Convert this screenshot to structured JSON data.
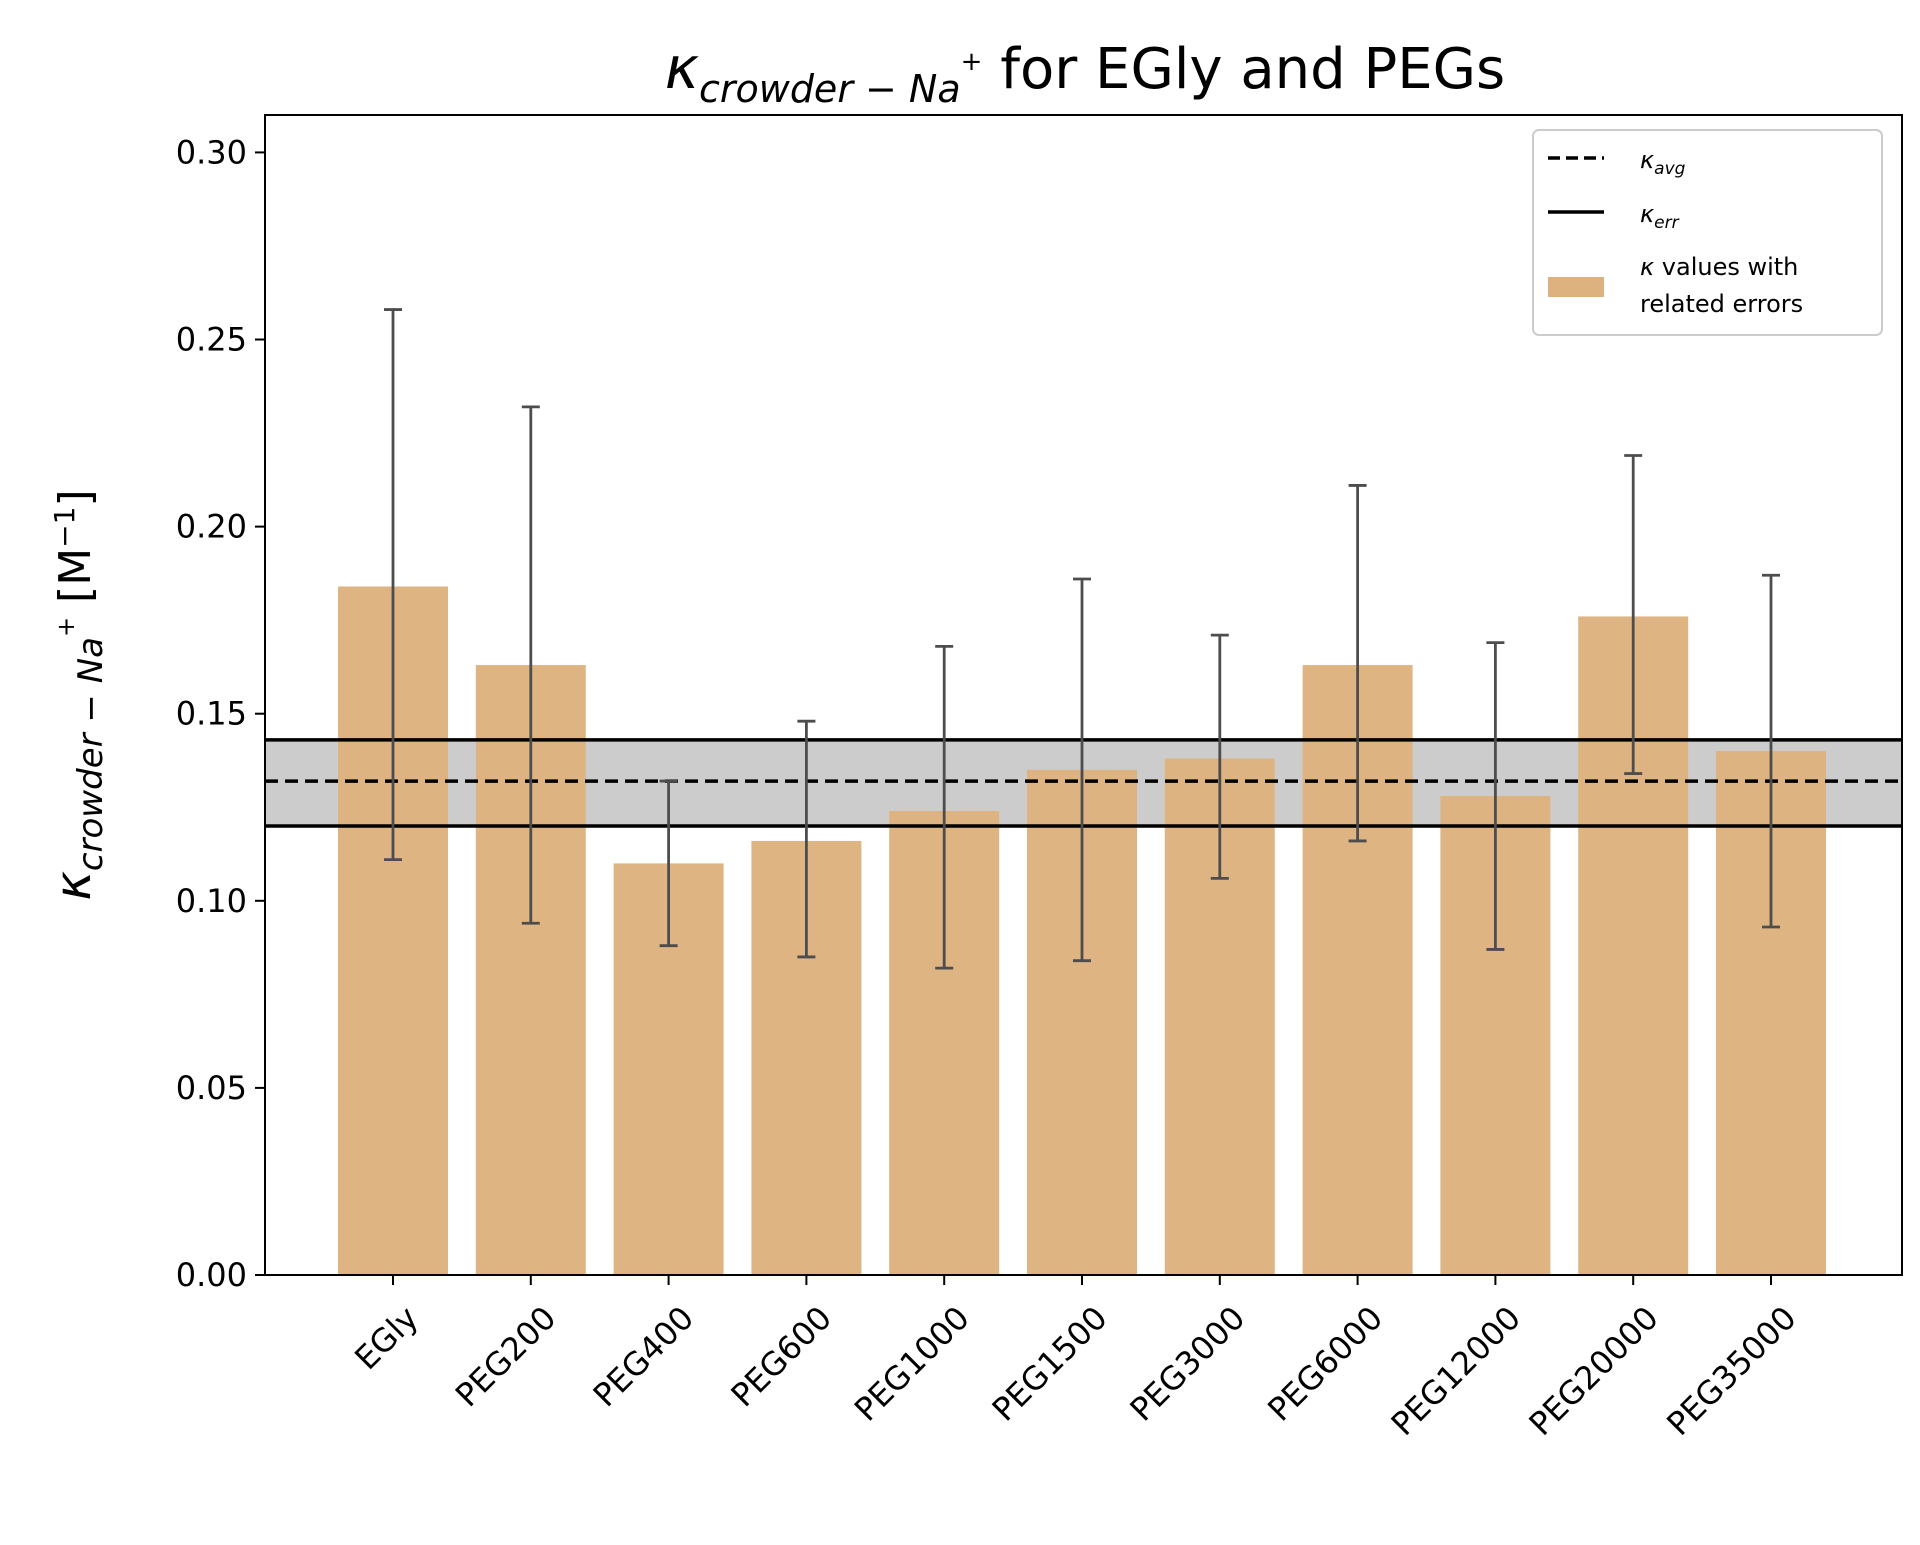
{
  "chart_data": {
    "type": "bar",
    "title": {
      "main": "κ",
      "sub": "crowder − Na",
      "sup": "+",
      "rest": " for EGly and PEGs"
    },
    "ylabel": {
      "main": "κ",
      "sub": "crowder − Na",
      "sup": "+",
      "unit_open": " [M",
      "unit_sup": "−1",
      "unit_close": "]"
    },
    "xlabel": "",
    "categories": [
      "EGly",
      "PEG200",
      "PEG400",
      "PEG600",
      "PEG1000",
      "PEG1500",
      "PEG3000",
      "PEG6000",
      "PEG12000",
      "PEG20000",
      "PEG35000"
    ],
    "values": [
      0.184,
      0.163,
      0.11,
      0.116,
      0.124,
      0.135,
      0.138,
      0.163,
      0.128,
      0.176,
      0.14
    ],
    "err_low": [
      0.111,
      0.094,
      0.088,
      0.085,
      0.082,
      0.084,
      0.106,
      0.116,
      0.087,
      0.134,
      0.093
    ],
    "err_high": [
      0.258,
      0.232,
      0.132,
      0.148,
      0.168,
      0.186,
      0.171,
      0.211,
      0.169,
      0.219,
      0.187
    ],
    "kappa_avg": 0.132,
    "kappa_err_band": [
      0.12,
      0.143
    ],
    "ylim": [
      0,
      0.31
    ],
    "yticks": [
      0.0,
      0.05,
      0.1,
      0.15,
      0.2,
      0.25,
      0.3
    ],
    "ytick_labels": [
      "0.00",
      "0.05",
      "0.10",
      "0.15",
      "0.20",
      "0.25",
      "0.30"
    ],
    "grid": false,
    "legend_position": "top-right",
    "legend": [
      {
        "kind": "dashed-line",
        "main": "κ",
        "sub": "avg"
      },
      {
        "kind": "solid-line",
        "main": "κ",
        "sub": "err"
      },
      {
        "kind": "patch",
        "main": "κ",
        "line1": " values with",
        "line2": "related errors"
      }
    ],
    "colors": {
      "bar": "#deb27f",
      "errorbar": "#4d4d4d",
      "band": "#cccccc",
      "line": "#000000"
    }
  }
}
